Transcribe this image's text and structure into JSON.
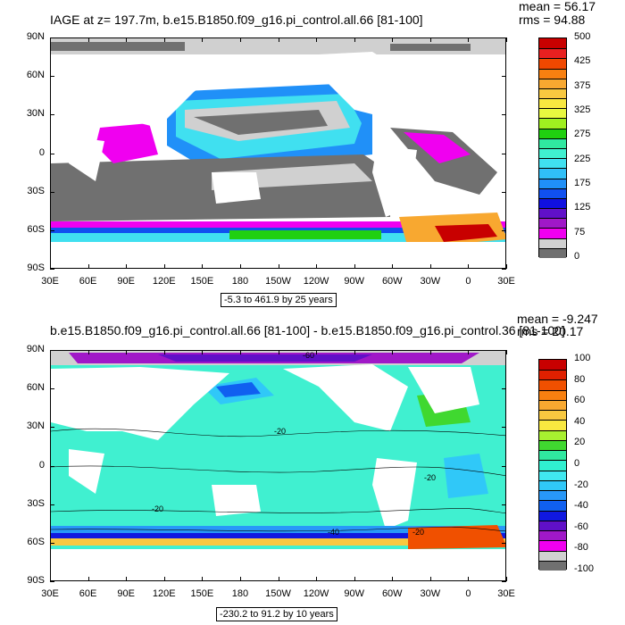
{
  "panel1": {
    "title": "IAGE at z= 197.7m, b.e15.B1850.f09_g16.pi_control.all.66 [81-100]",
    "mean": "mean = 56.17",
    "rms": "rms = 94.88",
    "range_note": "-5.3 to 461.9 by 25 years",
    "colorbar": {
      "labels": [
        "500",
        "425",
        "375",
        "325",
        "275",
        "225",
        "175",
        "125",
        "75",
        "0"
      ],
      "colors": [
        "#c80000",
        "#e82020",
        "#f04800",
        "#f88010",
        "#f8a830",
        "#f8c840",
        "#f8e840",
        "#e8f840",
        "#a0f020",
        "#20d010",
        "#30e8a0",
        "#40f0d0",
        "#40e0f0",
        "#30c0f8",
        "#2090f8",
        "#1050f0",
        "#1010e0",
        "#6010c8",
        "#a018c8",
        "#f000f0",
        "#d0d0d0",
        "#707070"
      ]
    }
  },
  "panel2": {
    "title": "b.e15.B1850.f09_g16.pi_control.all.66 [81-100] - b.e15.B1850.f09_g16.pi_control.36 [81-100]",
    "mean": "mean = -9.247",
    "rms": "rms = 20.17",
    "range_note": "-230.2 to 91.2 by 10 years",
    "colorbar": {
      "labels": [
        "100",
        "80",
        "60",
        "40",
        "20",
        "0",
        "-20",
        "-40",
        "-60",
        "-80",
        "-100"
      ],
      "colors": [
        "#c80000",
        "#e02000",
        "#f05000",
        "#f88010",
        "#f8a830",
        "#f8c840",
        "#f8e840",
        "#a8f030",
        "#40d830",
        "#30e8a0",
        "#30f0d0",
        "#40e8f0",
        "#30c8f8",
        "#2898f8",
        "#1060f0",
        "#1018e0",
        "#6010c8",
        "#a018c8",
        "#f000f0",
        "#d0d0d0",
        "#707070"
      ]
    }
  },
  "axes": {
    "lat_labels": [
      "90N",
      "60N",
      "30N",
      "0",
      "30S",
      "60S",
      "90S"
    ],
    "lon_labels": [
      "30E",
      "60E",
      "90E",
      "120E",
      "150E",
      "180",
      "150W",
      "120W",
      "90W",
      "60W",
      "30W",
      "0",
      "30E"
    ]
  },
  "contour_labels": [
    "-60",
    "-20",
    "-20",
    "-20",
    "-40",
    "-20"
  ]
}
